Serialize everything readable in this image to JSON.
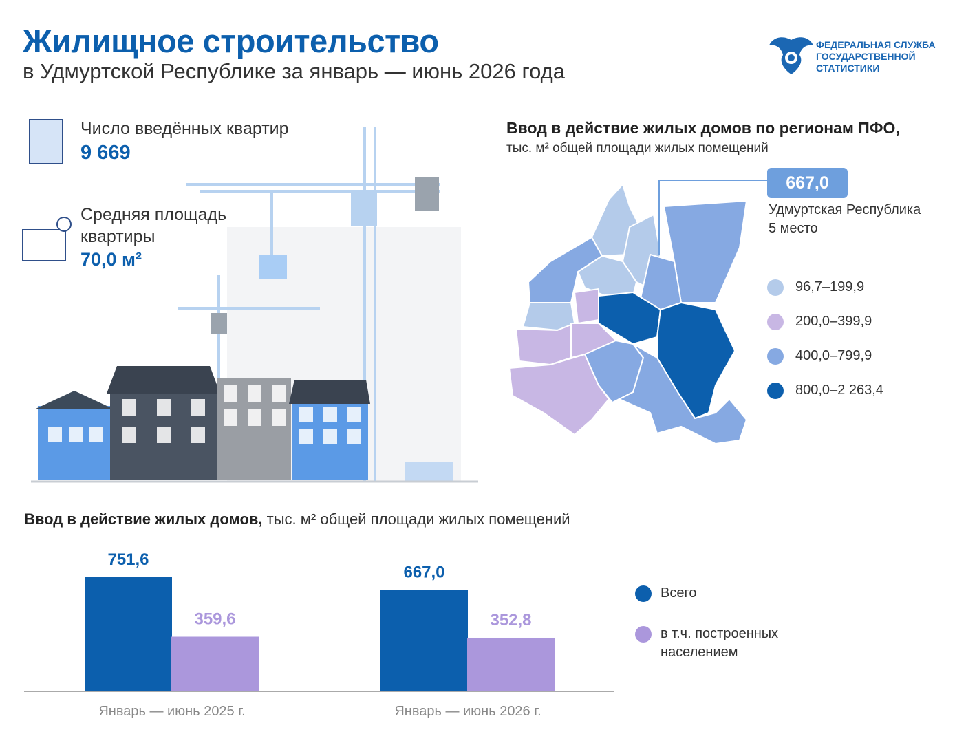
{
  "header": {
    "title": "Жилищное строительство",
    "subtitle": "в Удмуртской Республике за январь — июнь 2026 года",
    "logo_lines": [
      "ФЕДЕРАЛЬНАЯ СЛУЖБА",
      "ГОСУДАРСТВЕННОЙ",
      "СТАТИСТИКИ"
    ]
  },
  "stats": [
    {
      "label": "Число введённых квартир",
      "value": "9 669"
    },
    {
      "label": "Средняя площадь квартиры",
      "value": "70,0 м²"
    }
  ],
  "map": {
    "title": "Ввод в действие жилых домов по регионам ПФО,",
    "subtitle": "тыс. м² общей площади жилых помещений",
    "callout_value": "667,0",
    "callout_region": "Удмуртская Республика",
    "callout_rank": "5 место",
    "legend": [
      {
        "label": "96,7–199,9",
        "color": "#b4cbea"
      },
      {
        "label": "200,0–399,9",
        "color": "#c8b7e4"
      },
      {
        "label": "400,0–799,9",
        "color": "#86a9e2"
      },
      {
        "label": "800,0–2 263,4",
        "color": "#0c5fad"
      }
    ]
  },
  "chart_data": {
    "type": "bar",
    "title": "Ввод в действие жилых домов,",
    "subtitle": "тыс. м² общей площади жилых помещений",
    "categories": [
      "Январь — июнь 2025 г.",
      "Январь — июнь 2026 г."
    ],
    "series": [
      {
        "name": "Всего",
        "color": "#0c5fad",
        "values": [
          751.6,
          667.0
        ],
        "value_labels": [
          "751,6",
          "667,0"
        ]
      },
      {
        "name": "в т.ч. построенных населением",
        "color": "#ab97dc",
        "values": [
          359.6,
          352.8
        ],
        "value_labels": [
          "359,6",
          "352,8"
        ]
      }
    ],
    "ylim": [
      0,
      900
    ]
  }
}
